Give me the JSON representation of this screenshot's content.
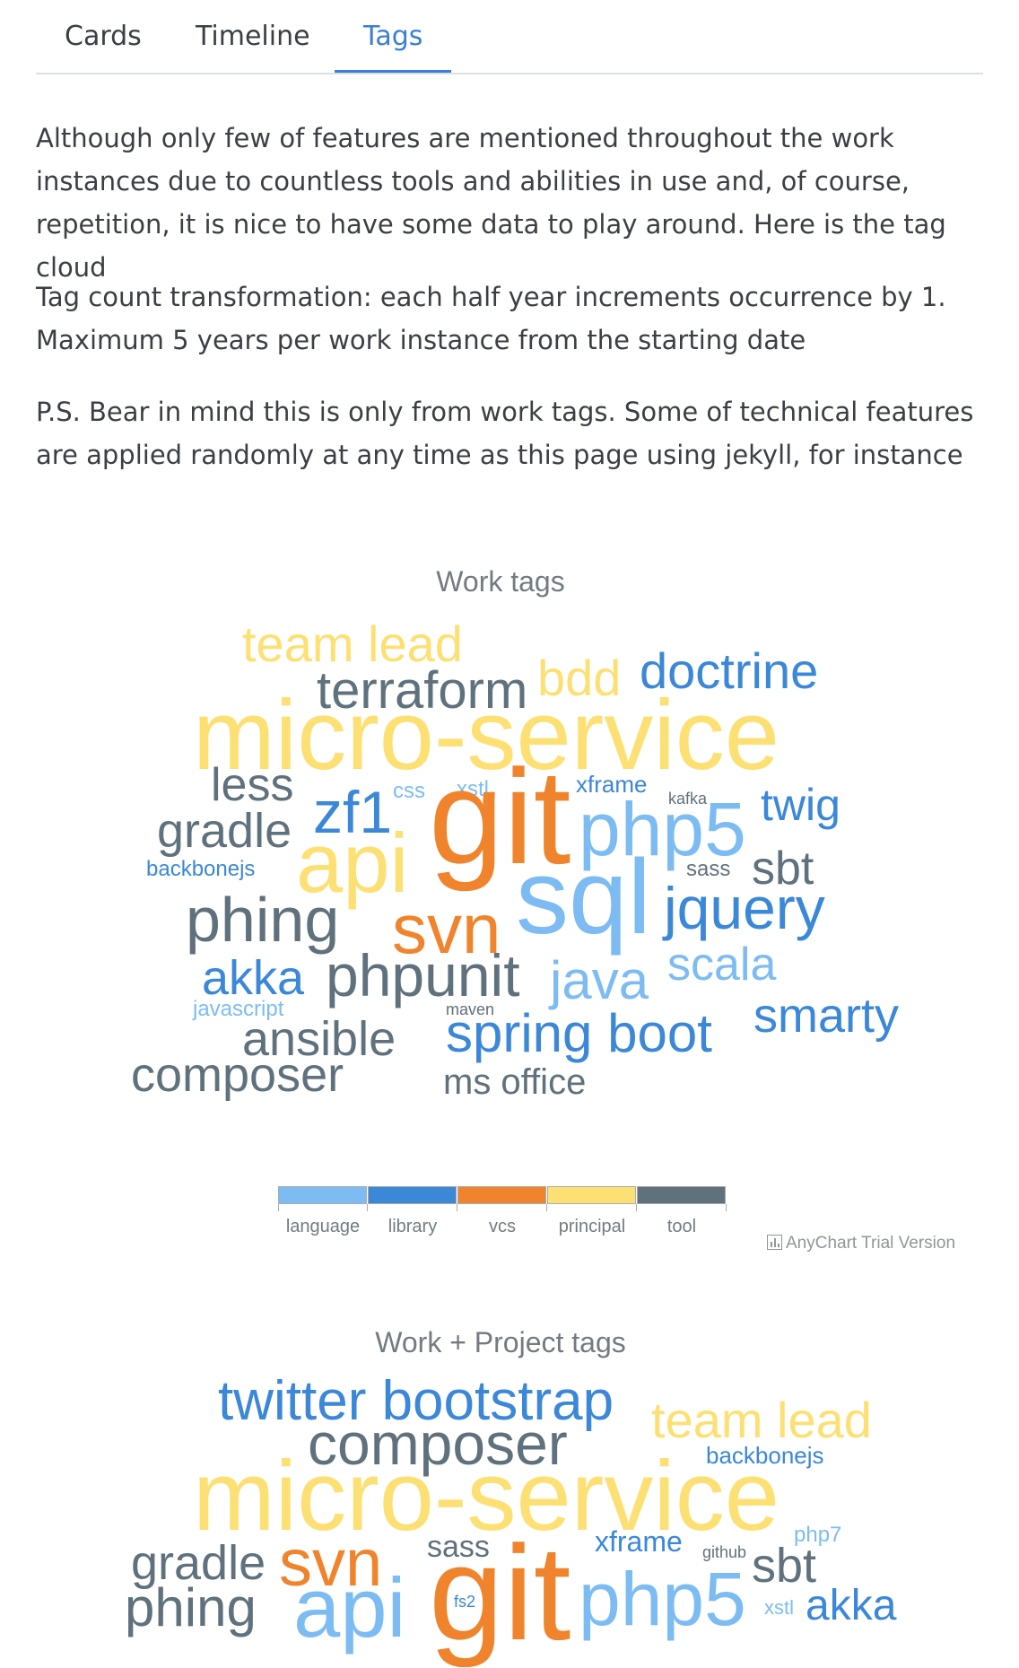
{
  "tabs": [
    {
      "label": "Cards",
      "active": false
    },
    {
      "label": "Timeline",
      "active": false
    },
    {
      "label": "Tags",
      "active": true
    }
  ],
  "paragraphs": [
    [
      "Although only few of features are mentioned throughout the work",
      "instances due to countless tools and abilities in use and, of course,",
      "repetition, it is nice to have some data to play around. Here is the tag cloud"
    ],
    [
      "Tag count transformation: each half year increments occurrence by 1.",
      "Maximum 5 years per work instance from the starting date"
    ],
    [
      "P.S. Bear in mind this is only from work tags. Some of technical features",
      "are applied randomly at any time as this page using jekyll, for instance"
    ]
  ],
  "colors": {
    "language": "#7cbcf3",
    "library": "#3b87d8",
    "vcs": "#f0842d",
    "principal": "#fde073",
    "tool": "#5f717c",
    "accent": "#3a7fd3"
  },
  "clouds": [
    {
      "title": "Work tags",
      "words": [
        {
          "text": "team lead",
          "category": "principal"
        },
        {
          "text": "terraform",
          "category": "tool"
        },
        {
          "text": "bdd",
          "category": "principal"
        },
        {
          "text": "doctrine",
          "category": "library"
        },
        {
          "text": "micro-service",
          "category": "principal"
        },
        {
          "text": "less",
          "category": "tool"
        },
        {
          "text": "css",
          "category": "language"
        },
        {
          "text": "xstl",
          "category": "language"
        },
        {
          "text": "xframe",
          "category": "library"
        },
        {
          "text": "kafka",
          "category": "tool"
        },
        {
          "text": "twig",
          "category": "library"
        },
        {
          "text": "zf1",
          "category": "library"
        },
        {
          "text": "gradle",
          "category": "tool"
        },
        {
          "text": "git",
          "category": "vcs"
        },
        {
          "text": "php5",
          "category": "language"
        },
        {
          "text": "api",
          "category": "principal"
        },
        {
          "text": "backbonejs",
          "category": "library"
        },
        {
          "text": "sass",
          "category": "tool"
        },
        {
          "text": "sbt",
          "category": "tool"
        },
        {
          "text": "sql",
          "category": "language"
        },
        {
          "text": "jquery",
          "category": "library"
        },
        {
          "text": "phing",
          "category": "tool"
        },
        {
          "text": "svn",
          "category": "vcs"
        },
        {
          "text": "akka",
          "category": "library"
        },
        {
          "text": "phpunit",
          "category": "tool"
        },
        {
          "text": "java",
          "category": "language"
        },
        {
          "text": "scala",
          "category": "language"
        },
        {
          "text": "javascript",
          "category": "language"
        },
        {
          "text": "maven",
          "category": "tool"
        },
        {
          "text": "smarty",
          "category": "library"
        },
        {
          "text": "ansible",
          "category": "tool"
        },
        {
          "text": "spring boot",
          "category": "library"
        },
        {
          "text": "composer",
          "category": "tool"
        },
        {
          "text": "ms office",
          "category": "tool"
        }
      ]
    },
    {
      "title": "Work + Project tags",
      "words": [
        {
          "text": "twitter bootstrap",
          "category": "library"
        },
        {
          "text": "team lead",
          "category": "principal"
        },
        {
          "text": "composer",
          "category": "tool"
        },
        {
          "text": "backbonejs",
          "category": "library"
        },
        {
          "text": "micro-service",
          "category": "principal"
        },
        {
          "text": "php7",
          "category": "language"
        },
        {
          "text": "sass",
          "category": "tool"
        },
        {
          "text": "xframe",
          "category": "library"
        },
        {
          "text": "github",
          "category": "tool"
        },
        {
          "text": "gradle",
          "category": "tool"
        },
        {
          "text": "svn",
          "category": "vcs"
        },
        {
          "text": "sbt",
          "category": "tool"
        },
        {
          "text": "git",
          "category": "vcs"
        },
        {
          "text": "php5",
          "category": "language"
        },
        {
          "text": "fs2",
          "category": "library"
        },
        {
          "text": "xstl",
          "category": "language"
        },
        {
          "text": "akka",
          "category": "library"
        },
        {
          "text": "phing",
          "category": "tool"
        },
        {
          "text": "api",
          "category": "language"
        }
      ]
    }
  ],
  "legend": [
    {
      "label": "language",
      "category": "language"
    },
    {
      "label": "library",
      "category": "library"
    },
    {
      "label": "vcs",
      "category": "vcs"
    },
    {
      "label": "principal",
      "category": "principal"
    },
    {
      "label": "tool",
      "category": "tool"
    }
  ],
  "credit": "AnyChart Trial Version"
}
